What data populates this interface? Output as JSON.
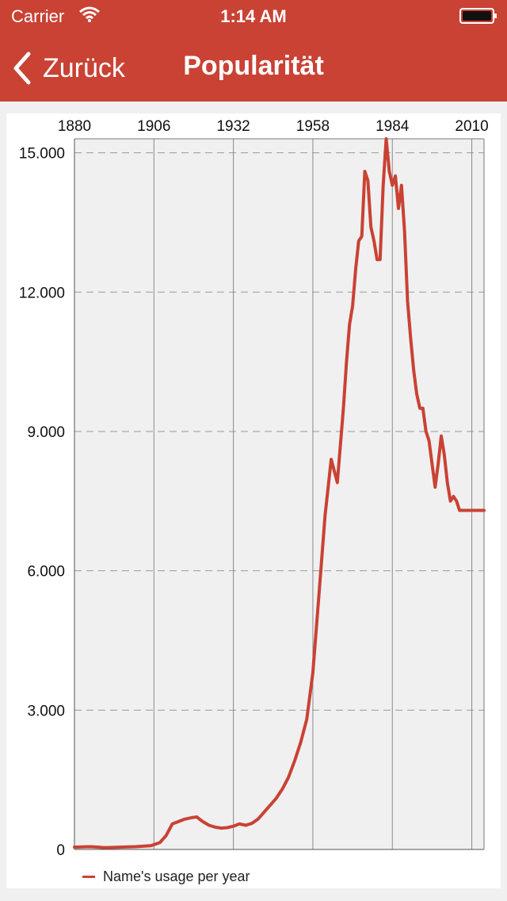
{
  "status_bar": {
    "carrier": "Carrier",
    "time": "1:14 AM",
    "wifi_icon": "wifi-icon",
    "battery_icon": "battery-icon"
  },
  "nav_bar": {
    "back_label": "Zurück",
    "back_icon": "chevron-left-icon",
    "title": "Popularität",
    "color": "#c94234"
  },
  "chart_data": {
    "type": "line",
    "title": "",
    "xlabel": "",
    "ylabel": "",
    "x_axis_position": "top",
    "x_ticks": [
      "1880",
      "1906",
      "1932",
      "1958",
      "1984",
      "2010"
    ],
    "y_ticks": [
      "0",
      "3.000",
      "6.000",
      "9.000",
      "12.000",
      "15.000"
    ],
    "ylim": [
      0,
      15300
    ],
    "xlim": [
      1880,
      2014
    ],
    "grid": true,
    "legend_position": "bottom-left",
    "series": [
      {
        "name": "Name's usage per year",
        "color": "#c94234",
        "x": [
          1880,
          1885,
          1890,
          1895,
          1900,
          1905,
          1908,
          1910,
          1912,
          1914,
          1916,
          1918,
          1920,
          1922,
          1924,
          1926,
          1928,
          1930,
          1932,
          1934,
          1936,
          1938,
          1940,
          1942,
          1944,
          1946,
          1948,
          1950,
          1952,
          1954,
          1956,
          1958,
          1960,
          1962,
          1964,
          1966,
          1968,
          1969,
          1970,
          1971,
          1972,
          1973,
          1974,
          1975,
          1976,
          1977,
          1978,
          1979,
          1980,
          1981,
          1982,
          1983,
          1984,
          1985,
          1986,
          1987,
          1988,
          1989,
          1990,
          1991,
          1992,
          1993,
          1994,
          1995,
          1996,
          1997,
          1998,
          1999,
          2000,
          2001,
          2002,
          2003,
          2004,
          2005,
          2006,
          2007,
          2008,
          2009,
          2010,
          2011,
          2012,
          2013,
          2014
        ],
        "values": [
          50,
          60,
          40,
          50,
          60,
          80,
          150,
          300,
          550,
          600,
          650,
          680,
          700,
          600,
          520,
          480,
          460,
          470,
          500,
          550,
          520,
          560,
          650,
          800,
          950,
          1100,
          1300,
          1550,
          1900,
          2300,
          2800,
          3800,
          5500,
          7200,
          8400,
          7900,
          9500,
          10500,
          11300,
          11700,
          12500,
          13100,
          13200,
          14600,
          14400,
          13400,
          13100,
          12700,
          12700,
          14300,
          15300,
          14600,
          14300,
          14500,
          13800,
          14300,
          13300,
          11800,
          11000,
          10300,
          9800,
          9500,
          9500,
          9000,
          8800,
          8300,
          7800,
          8300,
          8900,
          8500,
          7900,
          7500,
          7600,
          7500,
          7300,
          7300,
          7300,
          7300,
          7300,
          7300,
          7300,
          7300,
          7300
        ]
      }
    ]
  }
}
